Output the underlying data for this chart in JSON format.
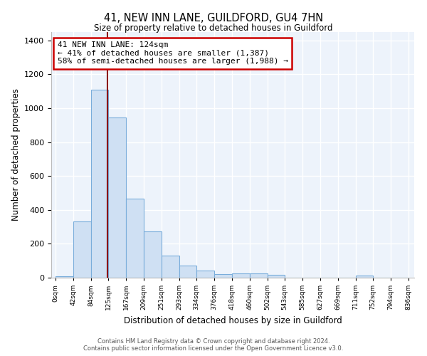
{
  "title": "41, NEW INN LANE, GUILDFORD, GU4 7HN",
  "subtitle": "Size of property relative to detached houses in Guildford",
  "xlabel": "Distribution of detached houses by size in Guildford",
  "ylabel": "Number of detached properties",
  "bar_color": "#cfe0f3",
  "bar_edge_color": "#7aaddb",
  "background_color": "#edf3fb",
  "grid_color": "#d8e4f0",
  "vline_color": "#8b0000",
  "annotation_text": "41 NEW INN LANE: 124sqm\n← 41% of detached houses are smaller (1,387)\n58% of semi-detached houses are larger (1,988) →",
  "annotation_box_color": "#cc0000",
  "bin_edges": [
    0,
    42,
    84,
    125,
    167,
    209,
    251,
    293,
    334,
    376,
    418,
    460,
    502,
    543,
    585,
    627,
    669,
    711,
    752,
    794,
    836
  ],
  "bin_values": [
    10,
    330,
    1110,
    945,
    465,
    275,
    130,
    70,
    40,
    22,
    25,
    25,
    18,
    2,
    2,
    2,
    2,
    12,
    2,
    2
  ],
  "ylim": [
    0,
    1450
  ],
  "yticks": [
    0,
    200,
    400,
    600,
    800,
    1000,
    1200,
    1400
  ],
  "footer_text": "Contains HM Land Registry data © Crown copyright and database right 2024.\nContains public sector information licensed under the Open Government Licence v3.0.",
  "tick_labels": [
    "0sqm",
    "42sqm",
    "84sqm",
    "125sqm",
    "167sqm",
    "209sqm",
    "251sqm",
    "293sqm",
    "334sqm",
    "376sqm",
    "418sqm",
    "460sqm",
    "502sqm",
    "543sqm",
    "585sqm",
    "627sqm",
    "669sqm",
    "711sqm",
    "752sqm",
    "794sqm",
    "836sqm"
  ]
}
